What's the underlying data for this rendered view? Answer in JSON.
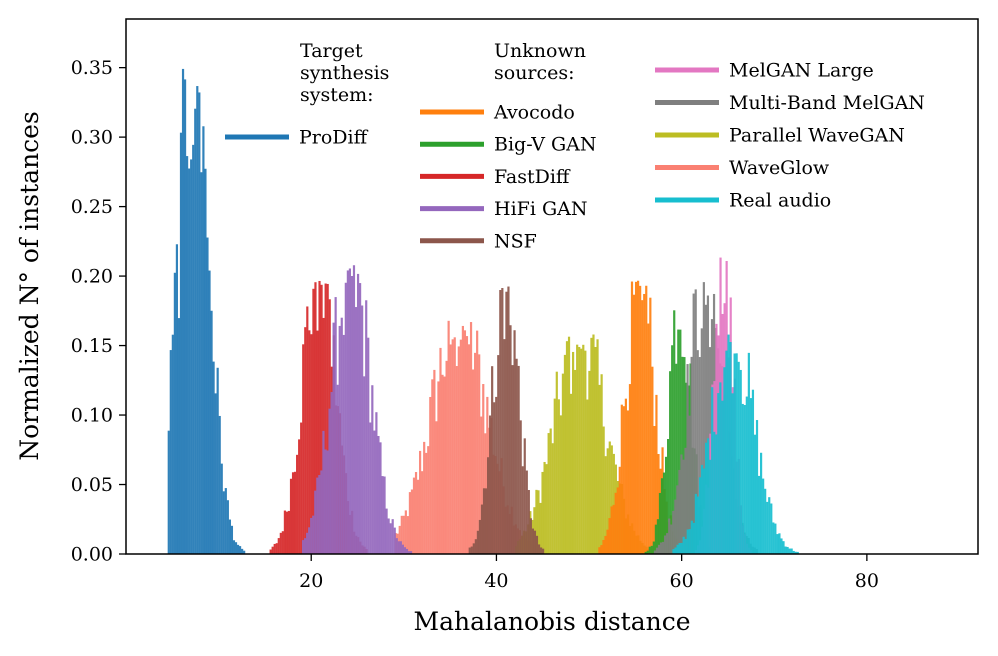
{
  "chart_data": {
    "type": "histogram",
    "xlabel": "Mahalanobis distance",
    "ylabel": "Normalized N° of instances",
    "xlim": [
      0,
      92
    ],
    "ylim": [
      0,
      0.385
    ],
    "xticks": [
      20,
      40,
      60,
      80
    ],
    "yticks": [
      "0.00",
      "0.05",
      "0.10",
      "0.15",
      "0.20",
      "0.25",
      "0.30",
      "0.35"
    ],
    "grid": false,
    "legend": {
      "target_title": "Target\nsynthesis\nsystem:",
      "unknown_title": "Unknown\nsources:"
    },
    "series": [
      {
        "name": "ProDiff",
        "group": "target",
        "color": "#1f77b4",
        "mean": 7.3,
        "sd": 1.7,
        "peak": 0.36,
        "min": 4.5,
        "max": 17
      },
      {
        "name": "Avocodo",
        "group": "unknown",
        "color": "#ff7f0e",
        "mean": 55.5,
        "sd": 1.6,
        "peak": 0.2,
        "min": 51,
        "max": 60
      },
      {
        "name": "Big-V GAN",
        "group": "unknown",
        "color": "#2ca02c",
        "mean": 59.8,
        "sd": 1.2,
        "peak": 0.19,
        "min": 56,
        "max": 63
      },
      {
        "name": "FastDiff",
        "group": "unknown",
        "color": "#d62728",
        "mean": 20.8,
        "sd": 1.8,
        "peak": 0.21,
        "min": 15.5,
        "max": 26
      },
      {
        "name": "HiFi GAN",
        "group": "unknown",
        "color": "#9467bd",
        "mean": 24.3,
        "sd": 2.1,
        "peak": 0.21,
        "min": 19,
        "max": 31
      },
      {
        "name": "NSF",
        "group": "unknown",
        "color": "#8c564b",
        "mean": 41.0,
        "sd": 1.4,
        "peak": 0.2,
        "min": 37,
        "max": 45
      },
      {
        "name": "MelGAN Large",
        "group": "unknown",
        "color": "#e377c2",
        "mean": 64.5,
        "sd": 1.0,
        "peak": 0.23,
        "min": 61,
        "max": 68
      },
      {
        "name": "Multi-Band MelGAN",
        "group": "unknown",
        "color": "#7f7f7f",
        "mean": 62.6,
        "sd": 1.9,
        "peak": 0.2,
        "min": 57,
        "max": 68
      },
      {
        "name": "Parallel WaveGAN",
        "group": "unknown",
        "color": "#bcbd22",
        "mean": 49.0,
        "sd": 2.8,
        "peak": 0.16,
        "min": 42,
        "max": 57
      },
      {
        "name": "WaveGlow",
        "group": "unknown",
        "color": "#fa8072",
        "mean": 36.0,
        "sd": 3.1,
        "peak": 0.17,
        "min": 29,
        "max": 44
      },
      {
        "name": "Real audio",
        "group": "unknown",
        "color": "#17becf",
        "mean": 65.5,
        "sd": 2.3,
        "peak": 0.16,
        "min": 59,
        "max": 76
      }
    ]
  }
}
